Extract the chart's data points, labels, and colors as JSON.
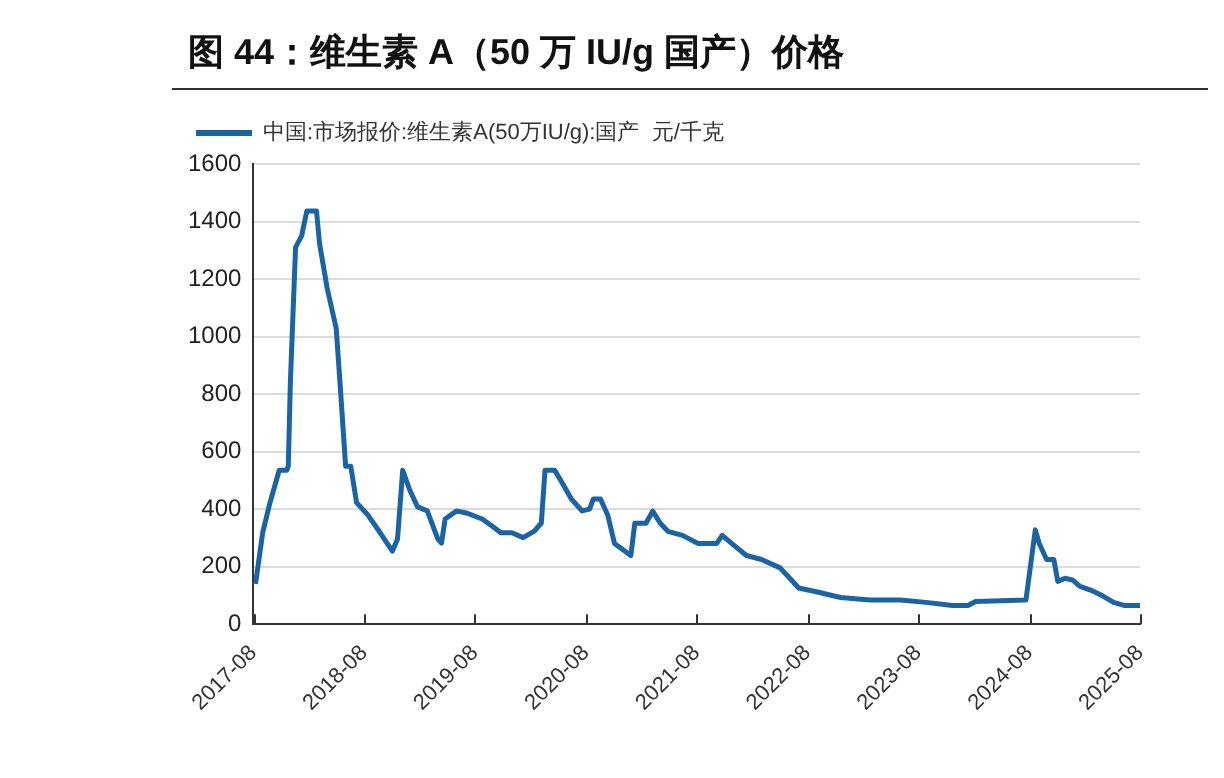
{
  "chart_data": {
    "type": "line",
    "title": "图 44：维生素 A（50 万 IU/g 国产）价格",
    "legend": "top",
    "grid": "y",
    "marker": "none",
    "line_style": "solid",
    "ylim": [
      0,
      1600
    ],
    "yticks": [
      0,
      200,
      400,
      600,
      800,
      1000,
      1200,
      1400,
      1600
    ],
    "xlim": [
      "2017-08",
      "2025-08"
    ],
    "xticks": [
      "2017-08",
      "2018-08",
      "2019-08",
      "2020-08",
      "2021-08",
      "2022-08",
      "2023-08",
      "2024-08",
      "2025-08"
    ],
    "series": [
      {
        "name": "中国:市场报价:维生素A(50万IU/g):国产  元/千克",
        "color": "#1b64a4",
        "x": [
          "2017-08-08",
          "2017-09-01",
          "2017-09-24",
          "2017-10-13",
          "2017-10-25",
          "2017-11-19",
          "2017-11-24",
          "2017-12-01",
          "2017-12-18",
          "2018-01-07",
          "2018-01-24",
          "2018-02-25",
          "2018-03-07",
          "2018-04-01",
          "2018-05-01",
          "2018-05-14",
          "2018-06-01",
          "2018-06-18",
          "2018-07-07",
          "2018-08-13",
          "2018-09-19",
          "2018-11-02",
          "2018-11-19",
          "2018-12-06",
          "2018-12-30",
          "2019-01-24",
          "2019-02-25",
          "2019-04-01",
          "2019-04-13",
          "2019-04-25",
          "2019-06-01",
          "2019-07-07",
          "2019-08-25",
          "2019-10-01",
          "2019-10-25",
          "2019-12-01",
          "2020-01-07",
          "2020-02-13",
          "2020-03-07",
          "2020-03-19",
          "2020-04-20",
          "2020-05-14",
          "2020-06-13",
          "2020-07-19",
          "2020-08-13",
          "2020-08-25",
          "2020-09-18",
          "2020-10-12",
          "2020-11-03",
          "2020-12-27",
          "2021-01-09",
          "2021-02-15",
          "2021-03-09",
          "2021-04-03",
          "2021-04-28",
          "2021-06-15",
          "2021-08-06",
          "2021-10-06",
          "2021-10-24",
          "2021-11-24",
          "2022-01-12",
          "2022-03-03",
          "2022-05-03",
          "2022-06-09",
          "2022-07-03",
          "2022-09-03",
          "2022-11-18",
          "2023-02-24",
          "2023-06-03",
          "2023-08-27",
          "2023-11-22",
          "2024-01-12",
          "2024-02-06",
          "2024-07-21",
          "2024-08-21",
          "2024-09-03",
          "2024-09-27",
          "2024-10-21",
          "2024-11-03",
          "2024-11-27",
          "2024-12-21",
          "2025-01-15",
          "2025-02-21",
          "2025-04-01",
          "2025-05-06",
          "2025-06-12",
          "2025-08-01"
        ],
        "values": [
          140,
          320,
          420,
          490,
          535,
          535,
          550,
          845,
          1310,
          1350,
          1437,
          1437,
          1324,
          1169,
          1028,
          831,
          549,
          549,
          423,
          380,
          324,
          254,
          296,
          535,
          465,
          408,
          394,
          296,
          282,
          366,
          394,
          386,
          366,
          338,
          318,
          318,
          301,
          324,
          352,
          535,
          535,
          493,
          437,
          394,
          400,
          435,
          435,
          379,
          281,
          239,
          351,
          351,
          393,
          351,
          323,
          309,
          281,
          281,
          309,
          281,
          239,
          225,
          196,
          154,
          126,
          112,
          93,
          84,
          84,
          76,
          65,
          65,
          79,
          84,
          328,
          281,
          225,
          225,
          149,
          160,
          154,
          132,
          118,
          98,
          76,
          65,
          65
        ]
      }
    ]
  }
}
